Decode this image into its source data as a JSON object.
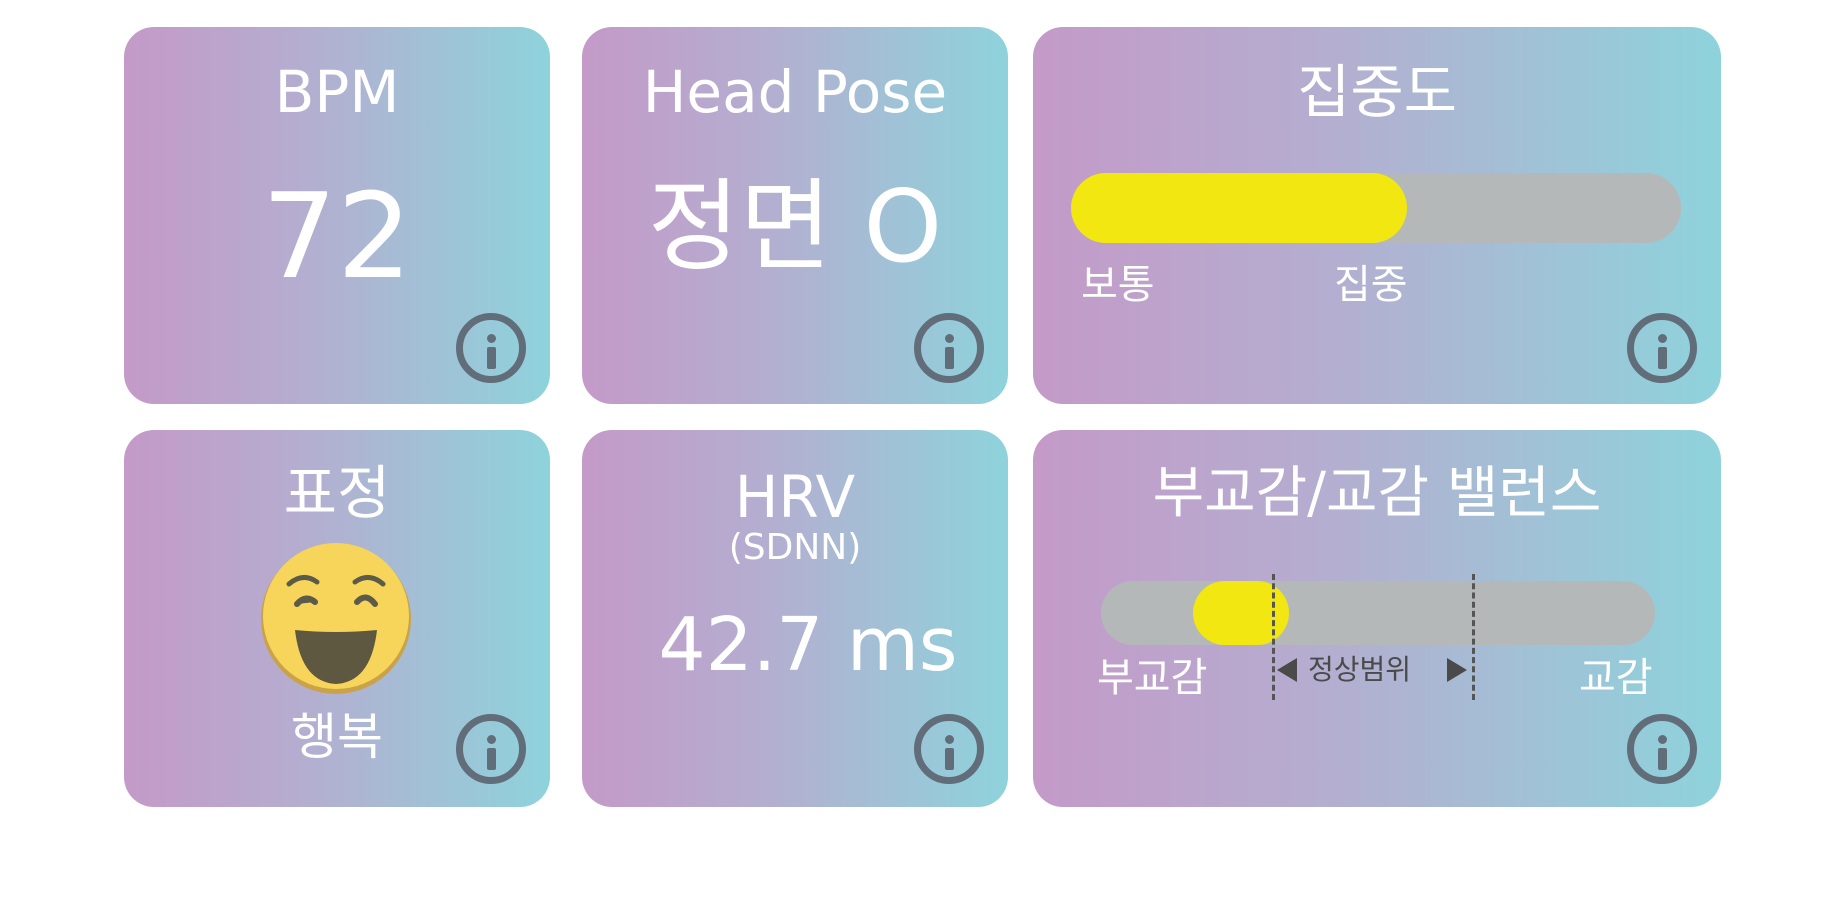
{
  "colors": {
    "accent_yellow": "#f3e711",
    "track_gray": "#b5b8b9",
    "icon_gray": "#626d7a"
  },
  "cards": {
    "bpm": {
      "title": "BPM",
      "value": "72"
    },
    "head_pose": {
      "title": "Head Pose",
      "value": "정면 O"
    },
    "focus": {
      "title": "집중도",
      "label_low": "보통",
      "label_high": "집중",
      "level": 0.55
    },
    "expression": {
      "title": "표정",
      "emoji": "happy-face",
      "label": "행복"
    },
    "hrv": {
      "title": "HRV",
      "subtitle": "(SDNN)",
      "value": "42.7 ms"
    },
    "balance": {
      "title": "부교감/교감 밸런스",
      "label_left": "부교감",
      "label_normal": "정상범위",
      "label_right": "교감",
      "position": 0.2
    }
  },
  "icons": {
    "info": "info-icon"
  }
}
